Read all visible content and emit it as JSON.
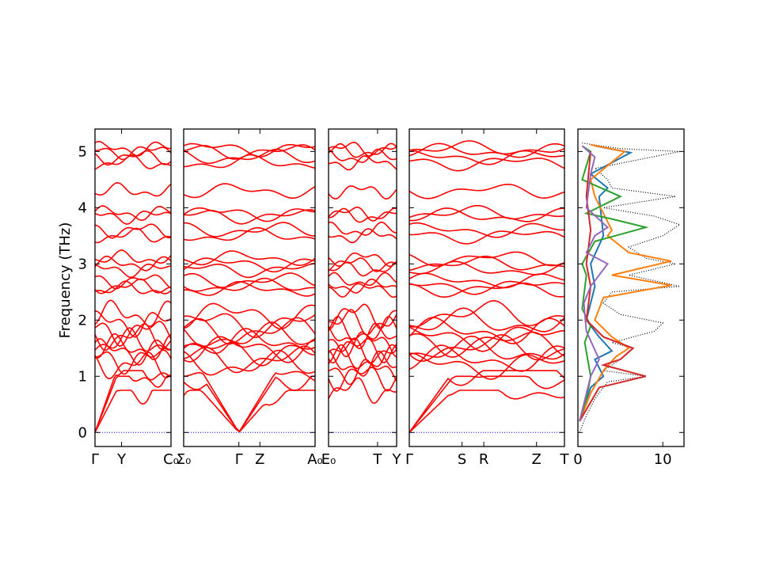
{
  "chart_data": {
    "type": "line",
    "ylabel": "Frequency (THz)",
    "ylim": [
      -0.25,
      5.4
    ],
    "yticks": [
      0,
      1,
      2,
      3,
      4,
      5
    ],
    "band_color": "#ff0000",
    "zero_line_color": "#0000ff",
    "panels": [
      {
        "name": "band-panel-1",
        "xticks": [
          "Γ",
          "Y",
          "C₀"
        ],
        "xtick_pos": [
          0,
          0.35,
          1.0
        ]
      },
      {
        "name": "band-panel-2",
        "xticks": [
          "Σ₀",
          "Γ",
          "Z",
          "A₀"
        ],
        "xtick_pos": [
          0,
          0.42,
          0.58,
          1.0
        ]
      },
      {
        "name": "band-panel-3",
        "xticks": [
          "E₀",
          "T",
          "Y"
        ],
        "xtick_pos": [
          0,
          0.72,
          1.0
        ]
      },
      {
        "name": "band-panel-4",
        "xticks": [
          "Γ",
          "S",
          "R",
          "Z",
          "T"
        ],
        "xtick_pos": [
          0,
          0.34,
          0.48,
          0.82,
          1.0
        ]
      }
    ],
    "bands": [
      0.75,
      1.0,
      1.1,
      1.2,
      1.3,
      1.45,
      1.5,
      1.6,
      1.7,
      1.8,
      1.95,
      2.1,
      2.55,
      2.6,
      2.7,
      2.9,
      3.0,
      3.1,
      3.5,
      3.6,
      3.85,
      3.9,
      4.3,
      4.8,
      4.9,
      5.0,
      5.05
    ],
    "dos": {
      "xlim": [
        0,
        12.5
      ],
      "xticks": [
        0,
        10
      ],
      "series": [
        {
          "color": "#000000",
          "style": "dotted",
          "points": [
            [
              0.2,
              0.0
            ],
            [
              1.0,
              0.3
            ],
            [
              2.0,
              0.6
            ],
            [
              3.5,
              0.9
            ],
            [
              8.0,
              1.0
            ],
            [
              3.0,
              1.1
            ],
            [
              5.0,
              1.3
            ],
            [
              6.5,
              1.5
            ],
            [
              4.0,
              1.6
            ],
            [
              9.0,
              1.8
            ],
            [
              10.0,
              1.95
            ],
            [
              5.0,
              2.1
            ],
            [
              3.0,
              2.3
            ],
            [
              4.0,
              2.5
            ],
            [
              12.0,
              2.6
            ],
            [
              6.0,
              2.8
            ],
            [
              11.5,
              3.0
            ],
            [
              8.0,
              3.1
            ],
            [
              6.0,
              3.3
            ],
            [
              10.0,
              3.5
            ],
            [
              12.0,
              3.7
            ],
            [
              9.0,
              3.85
            ],
            [
              3.0,
              4.0
            ],
            [
              11.5,
              4.2
            ],
            [
              4.0,
              4.35
            ],
            [
              3.5,
              4.5
            ],
            [
              2.0,
              4.7
            ],
            [
              12.0,
              5.0
            ],
            [
              5.0,
              5.05
            ],
            [
              0.5,
              5.15
            ]
          ]
        },
        {
          "color": "#1f77b4",
          "style": "solid",
          "points": [
            [
              0.2,
              0.2
            ],
            [
              1.5,
              0.8
            ],
            [
              3.0,
              1.0
            ],
            [
              2.0,
              1.3
            ],
            [
              4.0,
              1.45
            ],
            [
              2.5,
              1.7
            ],
            [
              1.0,
              2.0
            ],
            [
              2.0,
              2.6
            ],
            [
              1.5,
              3.0
            ],
            [
              3.0,
              3.5
            ],
            [
              2.5,
              4.2
            ],
            [
              3.5,
              4.35
            ],
            [
              1.5,
              4.6
            ],
            [
              6.2,
              4.98
            ],
            [
              2.0,
              5.1
            ]
          ]
        },
        {
          "color": "#ff7f0e",
          "style": "solid",
          "points": [
            [
              0.2,
              0.2
            ],
            [
              1.5,
              0.7
            ],
            [
              3.0,
              1.1
            ],
            [
              4.5,
              1.35
            ],
            [
              6.0,
              1.5
            ],
            [
              4.0,
              1.7
            ],
            [
              2.0,
              2.0
            ],
            [
              3.0,
              2.4
            ],
            [
              11.0,
              2.62
            ],
            [
              4.0,
              2.8
            ],
            [
              11.0,
              3.05
            ],
            [
              6.0,
              3.2
            ],
            [
              3.5,
              3.5
            ],
            [
              4.0,
              3.6
            ],
            [
              2.0,
              4.2
            ],
            [
              1.5,
              4.5
            ],
            [
              5.5,
              5.0
            ],
            [
              1.5,
              5.12
            ]
          ]
        },
        {
          "color": "#2ca02c",
          "style": "solid",
          "points": [
            [
              0.2,
              0.2
            ],
            [
              1.0,
              0.6
            ],
            [
              1.5,
              1.0
            ],
            [
              0.8,
              1.6
            ],
            [
              1.5,
              1.9
            ],
            [
              0.5,
              2.2
            ],
            [
              1.0,
              2.8
            ],
            [
              0.5,
              3.0
            ],
            [
              2.0,
              3.4
            ],
            [
              8.0,
              3.65
            ],
            [
              4.0,
              3.8
            ],
            [
              1.0,
              3.9
            ],
            [
              5.0,
              4.2
            ],
            [
              0.5,
              4.5
            ],
            [
              1.5,
              5.0
            ],
            [
              0.5,
              5.1
            ]
          ]
        },
        {
          "color": "#d62728",
          "style": "solid",
          "points": [
            [
              0.2,
              0.2
            ],
            [
              2.5,
              0.8
            ],
            [
              8.0,
              1.0
            ],
            [
              3.0,
              1.2
            ],
            [
              5.0,
              1.3
            ],
            [
              6.5,
              1.5
            ],
            [
              3.0,
              1.7
            ],
            [
              1.0,
              2.0
            ],
            [
              1.5,
              2.6
            ],
            [
              1.0,
              3.0
            ],
            [
              1.5,
              3.6
            ],
            [
              1.0,
              4.2
            ],
            [
              1.5,
              5.0
            ]
          ]
        },
        {
          "color": "#9467bd",
          "style": "solid",
          "points": [
            [
              0.2,
              0.2
            ],
            [
              1.5,
              1.0
            ],
            [
              2.5,
              1.3
            ],
            [
              1.0,
              1.8
            ],
            [
              0.7,
              2.3
            ],
            [
              1.5,
              2.6
            ],
            [
              3.5,
              3.0
            ],
            [
              1.0,
              3.2
            ],
            [
              2.0,
              3.5
            ],
            [
              3.5,
              3.65
            ],
            [
              1.0,
              4.0
            ],
            [
              1.5,
              4.6
            ],
            [
              2.0,
              4.9
            ],
            [
              0.5,
              5.1
            ]
          ]
        }
      ]
    }
  }
}
